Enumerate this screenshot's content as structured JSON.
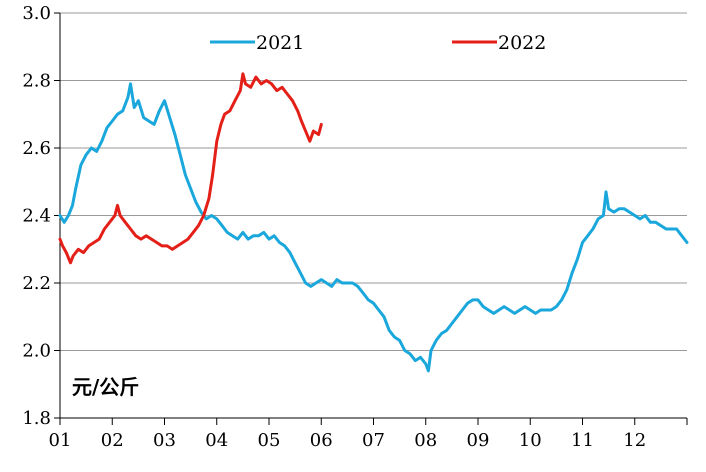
{
  "chart_data": {
    "type": "line",
    "ylabel": "元/公斤",
    "ylim": [
      1.8,
      3.0
    ],
    "y_ticks": [
      "1.8",
      "2.0",
      "2.2",
      "2.4",
      "2.6",
      "2.8",
      "3.0"
    ],
    "x_ticks": [
      "01",
      "02",
      "03",
      "04",
      "05",
      "06",
      "07",
      "08",
      "09",
      "10",
      "11",
      "12"
    ],
    "xlim": [
      1,
      13
    ],
    "grid": "horizontal",
    "legend_position": "top",
    "series": [
      {
        "name": "2021",
        "color": "#1aa7dc",
        "points": [
          [
            1.0,
            2.4
          ],
          [
            1.08,
            2.38
          ],
          [
            1.16,
            2.4
          ],
          [
            1.24,
            2.43
          ],
          [
            1.3,
            2.48
          ],
          [
            1.4,
            2.55
          ],
          [
            1.5,
            2.58
          ],
          [
            1.6,
            2.6
          ],
          [
            1.7,
            2.59
          ],
          [
            1.8,
            2.62
          ],
          [
            1.9,
            2.66
          ],
          [
            2.0,
            2.68
          ],
          [
            2.1,
            2.7
          ],
          [
            2.2,
            2.71
          ],
          [
            2.3,
            2.75
          ],
          [
            2.35,
            2.79
          ],
          [
            2.42,
            2.72
          ],
          [
            2.5,
            2.74
          ],
          [
            2.6,
            2.69
          ],
          [
            2.7,
            2.68
          ],
          [
            2.8,
            2.67
          ],
          [
            2.9,
            2.71
          ],
          [
            3.0,
            2.74
          ],
          [
            3.1,
            2.69
          ],
          [
            3.2,
            2.64
          ],
          [
            3.3,
            2.58
          ],
          [
            3.4,
            2.52
          ],
          [
            3.5,
            2.48
          ],
          [
            3.6,
            2.44
          ],
          [
            3.7,
            2.41
          ],
          [
            3.8,
            2.39
          ],
          [
            3.9,
            2.4
          ],
          [
            4.0,
            2.39
          ],
          [
            4.1,
            2.37
          ],
          [
            4.2,
            2.35
          ],
          [
            4.3,
            2.34
          ],
          [
            4.4,
            2.33
          ],
          [
            4.5,
            2.35
          ],
          [
            4.6,
            2.33
          ],
          [
            4.7,
            2.34
          ],
          [
            4.8,
            2.34
          ],
          [
            4.9,
            2.35
          ],
          [
            5.0,
            2.33
          ],
          [
            5.1,
            2.34
          ],
          [
            5.2,
            2.32
          ],
          [
            5.3,
            2.31
          ],
          [
            5.4,
            2.29
          ],
          [
            5.5,
            2.26
          ],
          [
            5.6,
            2.23
          ],
          [
            5.7,
            2.2
          ],
          [
            5.8,
            2.19
          ],
          [
            5.9,
            2.2
          ],
          [
            6.0,
            2.21
          ],
          [
            6.1,
            2.2
          ],
          [
            6.2,
            2.19
          ],
          [
            6.3,
            2.21
          ],
          [
            6.4,
            2.2
          ],
          [
            6.5,
            2.2
          ],
          [
            6.6,
            2.2
          ],
          [
            6.7,
            2.19
          ],
          [
            6.8,
            2.17
          ],
          [
            6.9,
            2.15
          ],
          [
            7.0,
            2.14
          ],
          [
            7.1,
            2.12
          ],
          [
            7.2,
            2.1
          ],
          [
            7.3,
            2.06
          ],
          [
            7.4,
            2.04
          ],
          [
            7.5,
            2.03
          ],
          [
            7.6,
            2.0
          ],
          [
            7.7,
            1.99
          ],
          [
            7.8,
            1.97
          ],
          [
            7.9,
            1.98
          ],
          [
            8.0,
            1.96
          ],
          [
            8.05,
            1.94
          ],
          [
            8.1,
            2.0
          ],
          [
            8.2,
            2.03
          ],
          [
            8.3,
            2.05
          ],
          [
            8.4,
            2.06
          ],
          [
            8.5,
            2.08
          ],
          [
            8.6,
            2.1
          ],
          [
            8.7,
            2.12
          ],
          [
            8.8,
            2.14
          ],
          [
            8.9,
            2.15
          ],
          [
            9.0,
            2.15
          ],
          [
            9.1,
            2.13
          ],
          [
            9.2,
            2.12
          ],
          [
            9.3,
            2.11
          ],
          [
            9.4,
            2.12
          ],
          [
            9.5,
            2.13
          ],
          [
            9.6,
            2.12
          ],
          [
            9.7,
            2.11
          ],
          [
            9.8,
            2.12
          ],
          [
            9.9,
            2.13
          ],
          [
            10.0,
            2.12
          ],
          [
            10.1,
            2.11
          ],
          [
            10.2,
            2.12
          ],
          [
            10.3,
            2.12
          ],
          [
            10.4,
            2.12
          ],
          [
            10.5,
            2.13
          ],
          [
            10.6,
            2.15
          ],
          [
            10.7,
            2.18
          ],
          [
            10.8,
            2.23
          ],
          [
            10.9,
            2.27
          ],
          [
            11.0,
            2.32
          ],
          [
            11.1,
            2.34
          ],
          [
            11.2,
            2.36
          ],
          [
            11.3,
            2.39
          ],
          [
            11.4,
            2.4
          ],
          [
            11.45,
            2.47
          ],
          [
            11.5,
            2.42
          ],
          [
            11.6,
            2.41
          ],
          [
            11.7,
            2.42
          ],
          [
            11.8,
            2.42
          ],
          [
            11.9,
            2.41
          ],
          [
            12.0,
            2.4
          ],
          [
            12.1,
            2.39
          ],
          [
            12.2,
            2.4
          ],
          [
            12.3,
            2.38
          ],
          [
            12.4,
            2.38
          ],
          [
            12.5,
            2.37
          ],
          [
            12.6,
            2.36
          ],
          [
            12.7,
            2.36
          ],
          [
            12.8,
            2.36
          ],
          [
            12.9,
            2.34
          ],
          [
            13.0,
            2.32
          ]
        ]
      },
      {
        "name": "2022",
        "color": "#e41f18",
        "points": [
          [
            1.0,
            2.33
          ],
          [
            1.05,
            2.31
          ],
          [
            1.12,
            2.29
          ],
          [
            1.2,
            2.26
          ],
          [
            1.25,
            2.28
          ],
          [
            1.35,
            2.3
          ],
          [
            1.45,
            2.29
          ],
          [
            1.55,
            2.31
          ],
          [
            1.65,
            2.32
          ],
          [
            1.75,
            2.33
          ],
          [
            1.85,
            2.36
          ],
          [
            1.95,
            2.38
          ],
          [
            2.05,
            2.4
          ],
          [
            2.1,
            2.43
          ],
          [
            2.15,
            2.4
          ],
          [
            2.25,
            2.38
          ],
          [
            2.35,
            2.36
          ],
          [
            2.45,
            2.34
          ],
          [
            2.55,
            2.33
          ],
          [
            2.65,
            2.34
          ],
          [
            2.75,
            2.33
          ],
          [
            2.85,
            2.32
          ],
          [
            2.95,
            2.31
          ],
          [
            3.05,
            2.31
          ],
          [
            3.15,
            2.3
          ],
          [
            3.25,
            2.31
          ],
          [
            3.35,
            2.32
          ],
          [
            3.45,
            2.33
          ],
          [
            3.55,
            2.35
          ],
          [
            3.65,
            2.37
          ],
          [
            3.75,
            2.4
          ],
          [
            3.85,
            2.45
          ],
          [
            3.92,
            2.52
          ],
          [
            4.0,
            2.62
          ],
          [
            4.08,
            2.67
          ],
          [
            4.15,
            2.7
          ],
          [
            4.25,
            2.71
          ],
          [
            4.35,
            2.74
          ],
          [
            4.45,
            2.77
          ],
          [
            4.5,
            2.82
          ],
          [
            4.55,
            2.79
          ],
          [
            4.65,
            2.78
          ],
          [
            4.75,
            2.81
          ],
          [
            4.85,
            2.79
          ],
          [
            4.95,
            2.8
          ],
          [
            5.05,
            2.79
          ],
          [
            5.15,
            2.77
          ],
          [
            5.25,
            2.78
          ],
          [
            5.35,
            2.76
          ],
          [
            5.45,
            2.74
          ],
          [
            5.55,
            2.71
          ],
          [
            5.62,
            2.68
          ],
          [
            5.7,
            2.65
          ],
          [
            5.78,
            2.62
          ],
          [
            5.85,
            2.65
          ],
          [
            5.95,
            2.64
          ],
          [
            6.0,
            2.67
          ]
        ]
      }
    ]
  }
}
